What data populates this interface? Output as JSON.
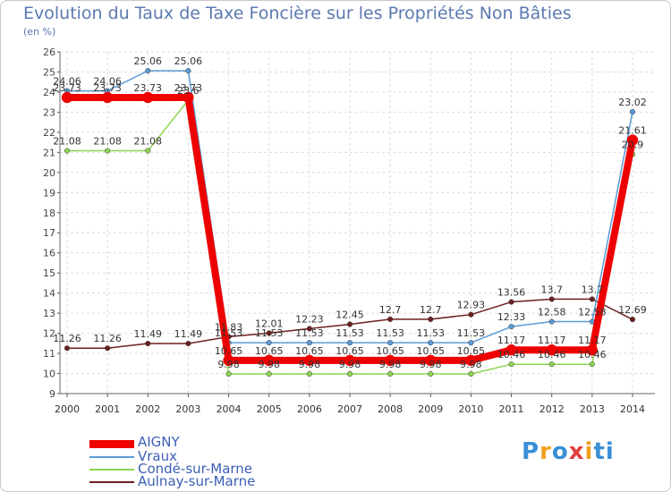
{
  "chart_data": {
    "type": "line",
    "title": "Evolution du Taux de Taxe Foncière sur les Propriétés Non Bâties",
    "subtitle": "(en %)",
    "x": [
      "2000",
      "2001",
      "2002",
      "2003",
      "2004",
      "2005",
      "2006",
      "2007",
      "2008",
      "2009",
      "2010",
      "2011",
      "2012",
      "2013",
      "2014"
    ],
    "ylim": [
      9,
      26
    ],
    "yticks": [
      "9",
      "10",
      "11",
      "12",
      "13",
      "14",
      "15",
      "16",
      "17",
      "18",
      "19",
      "20",
      "21",
      "22",
      "23",
      "24",
      "25",
      "26"
    ],
    "series": [
      {
        "name": "Aulnay-sur-Marne",
        "color": "#6b1f1f",
        "width": 1.5,
        "marker": 2.8,
        "values": [
          11.26,
          11.26,
          11.49,
          11.49,
          11.83,
          12.01,
          12.23,
          12.45,
          12.7,
          12.7,
          12.93,
          13.56,
          13.7,
          13.7,
          12.69
        ],
        "labels": [
          "11.26",
          "11.26",
          "11.49",
          "11.49",
          "11.83",
          "12.01",
          "12.23",
          "12.45",
          "12.7",
          "12.7",
          "12.93",
          "13.56",
          "13.7",
          "13.7",
          "12.69"
        ]
      },
      {
        "name": "Condé-sur-Marne",
        "color": "#8ed651",
        "width": 1.5,
        "marker": 2.8,
        "values": [
          21.08,
          21.08,
          21.08,
          23.6,
          9.98,
          9.98,
          9.98,
          9.98,
          9.98,
          9.98,
          9.98,
          10.46,
          10.46,
          10.46,
          20.9
        ],
        "labels": [
          "21.08",
          "21.08",
          "21.08",
          "23.6",
          "9.98",
          "9.98",
          "9.98",
          "9.98",
          "9.98",
          "9.98",
          "9.98",
          "10.46",
          "10.46",
          "10.46",
          "20.9"
        ]
      },
      {
        "name": "Vraux",
        "color": "#5a9bd5",
        "width": 1.5,
        "marker": 2.8,
        "values": [
          24.06,
          24.06,
          25.06,
          25.06,
          11.53,
          11.53,
          11.53,
          11.53,
          11.53,
          11.53,
          11.53,
          12.33,
          12.58,
          12.58,
          23.02
        ],
        "labels": [
          "24.06",
          "24.06",
          "25.06",
          "25.06",
          "11.53",
          "11.53",
          "11.53",
          "11.53",
          "11.53",
          "11.53",
          "11.53",
          "12.33",
          "12.58",
          "12.58",
          "23.02"
        ]
      },
      {
        "name": "AIGNY",
        "color": "#ee0000",
        "width": 8,
        "marker": 6,
        "values": [
          23.73,
          23.73,
          23.73,
          23.73,
          10.65,
          10.65,
          10.65,
          10.65,
          10.65,
          10.65,
          10.65,
          11.17,
          11.17,
          11.17,
          21.61
        ],
        "labels": [
          "23.73",
          "23.73",
          "23.73",
          "23.73",
          "10.65",
          "10.65",
          "10.65",
          "10.65",
          "10.65",
          "10.65",
          "10.65",
          "11.17",
          "11.17",
          "11.17",
          "21.61"
        ]
      }
    ],
    "legend": [
      {
        "name": "AIGNY",
        "color": "#ee0000",
        "thickness": 9
      },
      {
        "name": "Vraux",
        "color": "#5a9bd5",
        "thickness": 2
      },
      {
        "name": "Condé-sur-Marne",
        "color": "#8ed651",
        "thickness": 2
      },
      {
        "name": "Aulnay-sur-Marne",
        "color": "#6b1f1f",
        "thickness": 2
      }
    ],
    "legend_position": "bottom-left"
  },
  "logo": {
    "text": "Proxiti",
    "colors": [
      "#3a8fd6",
      "#f0a020",
      "#3a8fd6",
      "#e04040",
      "#f0a020",
      "#3a8fd6",
      "#3a8fd6"
    ]
  }
}
